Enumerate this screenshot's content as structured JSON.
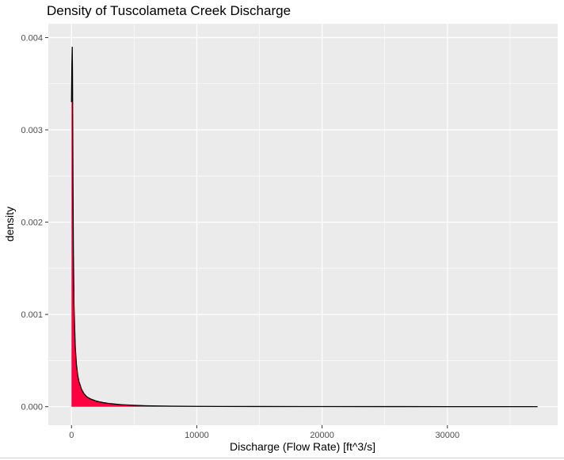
{
  "chart_data": {
    "type": "area",
    "title": "Density of Tuscolameta Creek Discharge",
    "xlabel": "Discharge (Flow Rate) [ft^3/s]",
    "ylabel": "density",
    "xlim": [
      -1850,
      38800
    ],
    "ylim": [
      -0.0002,
      0.00415
    ],
    "x_ticks": [
      0,
      10000,
      20000,
      30000
    ],
    "x_tick_labels": [
      "0",
      "10000",
      "20000",
      "30000"
    ],
    "y_ticks": [
      0,
      0.001,
      0.002,
      0.003,
      0.004
    ],
    "y_tick_labels": [
      "0.000",
      "0.001",
      "0.002",
      "0.003",
      "0.004"
    ],
    "grid": true,
    "panel_background": "#EBEBEB",
    "grid_color": "#FFFFFF",
    "fill_color": "#FF0040",
    "line_color": "#000000",
    "series": [
      {
        "x": [
          0,
          30,
          60,
          80,
          100,
          120,
          150,
          200,
          300,
          400,
          500,
          600,
          800,
          1000,
          1200,
          1500,
          2000,
          2500,
          3000,
          3500,
          4000,
          5000,
          6000,
          8000,
          10000,
          12000,
          15000,
          20000,
          25000,
          30000,
          35000,
          37200
        ],
        "y": [
          0.0033,
          0.0037,
          0.0039,
          0.0036,
          0.003,
          0.0024,
          0.0017,
          0.0011,
          0.00065,
          0.00045,
          0.00034,
          0.00027,
          0.00019,
          0.00014,
          0.00011,
          8.5e-05,
          6e-05,
          4.5e-05,
          3.5e-05,
          2.8e-05,
          2.2e-05,
          1.5e-05,
          1e-05,
          6e-06,
          4e-06,
          3e-06,
          2e-06,
          1.5e-06,
          1e-06,
          8e-07,
          5e-07,
          3e-07
        ]
      }
    ]
  }
}
